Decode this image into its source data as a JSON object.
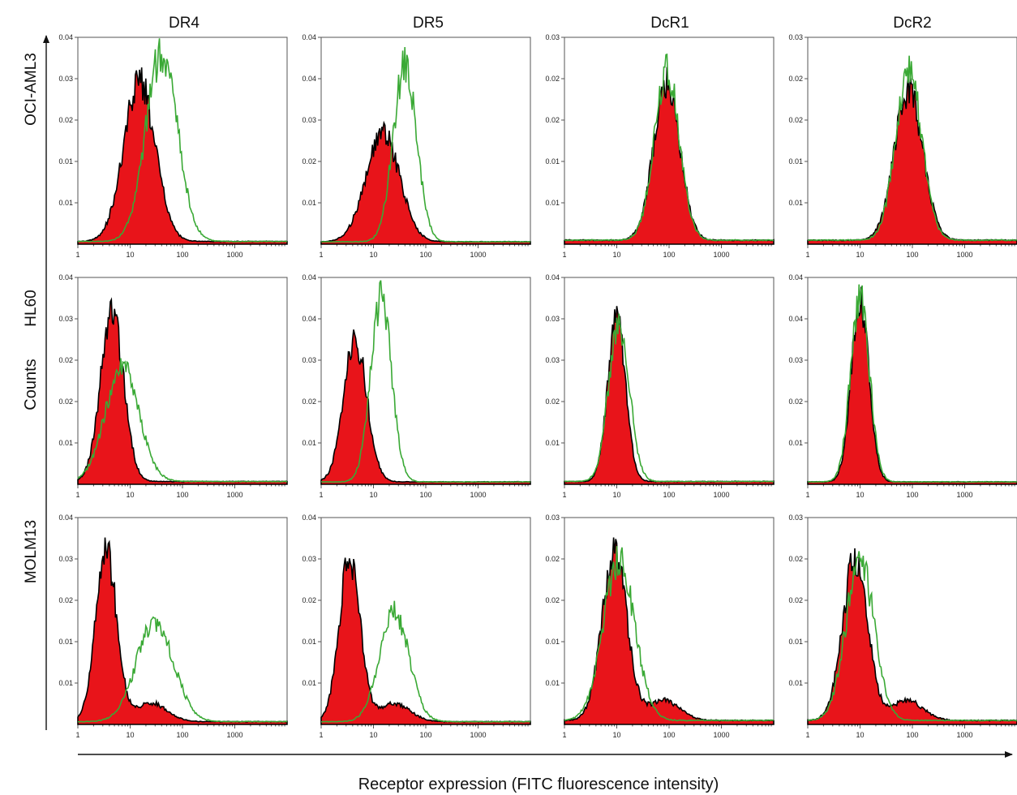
{
  "chart_data": {
    "type": "histogram-grid",
    "xlabel": "Receptor expression (FITC fluorescence intensity)",
    "ylabel": "Counts",
    "x_scale": "log",
    "xlim": [
      1,
      10000
    ],
    "x_tick_labels": [
      "1",
      "10",
      "100",
      "1000"
    ],
    "columns": [
      "DR4",
      "DR5",
      "DcR1",
      "DcR2"
    ],
    "rows": [
      "OCI-AML3",
      "HL60",
      "MOLM13"
    ],
    "colors": {
      "control_fill": "#e8141a",
      "control_edge": "#000000",
      "receptor_line": "#3aa935"
    },
    "panels": [
      {
        "row": 0,
        "col": 0,
        "y_tick_labels": [
          "0.01",
          "0.01",
          "0.02",
          "0.03",
          "0.04"
        ],
        "ylim": [
          0,
          0.045
        ],
        "control": [
          {
            "center": 15,
            "sd": 0.3,
            "peak": 0.035
          }
        ],
        "receptor": [
          {
            "center": 40,
            "sd": 0.3,
            "peak": 0.0412
          }
        ]
      },
      {
        "row": 0,
        "col": 1,
        "y_tick_labels": [
          "0.01",
          "0.02",
          "0.03",
          "0.04",
          "0.04"
        ],
        "ylim": [
          0,
          0.051
        ],
        "control": [
          {
            "center": 15,
            "sd": 0.32,
            "peak": 0.027
          }
        ],
        "receptor": [
          {
            "center": 40,
            "sd": 0.22,
            "peak": 0.044
          }
        ]
      },
      {
        "row": 0,
        "col": 2,
        "y_tick_labels": [
          "0.01",
          "0.01",
          "0.02",
          "0.02",
          "0.03"
        ],
        "ylim": [
          0,
          0.031
        ],
        "control": [
          {
            "center": 90,
            "sd": 0.25,
            "peak": 0.0235
          }
        ],
        "receptor": [
          {
            "center": 90,
            "sd": 0.24,
            "peak": 0.0255
          }
        ]
      },
      {
        "row": 0,
        "col": 3,
        "y_tick_labels": [
          "0.01",
          "0.01",
          "0.02",
          "0.02",
          "0.03"
        ],
        "ylim": [
          0,
          0.031
        ],
        "control": [
          {
            "center": 85,
            "sd": 0.27,
            "peak": 0.0225
          }
        ],
        "receptor": [
          {
            "center": 85,
            "sd": 0.25,
            "peak": 0.0255
          }
        ]
      },
      {
        "row": 1,
        "col": 0,
        "y_tick_labels": [
          "0.01",
          "0.02",
          "0.02",
          "0.03",
          "0.04"
        ],
        "ylim": [
          0,
          0.044
        ],
        "control": [
          {
            "center": 4.5,
            "sd": 0.22,
            "peak": 0.0355
          }
        ],
        "receptor": [
          {
            "center": 7,
            "sd": 0.32,
            "peak": 0.0245
          }
        ]
      },
      {
        "row": 1,
        "col": 1,
        "y_tick_labels": [
          "0.01",
          "0.02",
          "0.03",
          "0.04",
          "0.04"
        ],
        "ylim": [
          0,
          0.051
        ],
        "control": [
          {
            "center": 4.5,
            "sd": 0.22,
            "peak": 0.035
          }
        ],
        "receptor": [
          {
            "center": 14,
            "sd": 0.2,
            "peak": 0.045
          }
        ]
      },
      {
        "row": 1,
        "col": 2,
        "y_tick_labels": [
          "0.01",
          "0.02",
          "0.03",
          "0.03",
          "0.04"
        ],
        "ylim": [
          0,
          0.044
        ],
        "control": [
          {
            "center": 10,
            "sd": 0.17,
            "peak": 0.0355
          }
        ],
        "receptor": [
          {
            "center": 11,
            "sd": 0.2,
            "peak": 0.0335
          }
        ]
      },
      {
        "row": 1,
        "col": 3,
        "y_tick_labels": [
          "0.01",
          "0.02",
          "0.03",
          "0.04",
          "0.04"
        ],
        "ylim": [
          0,
          0.051
        ],
        "control": [
          {
            "center": 10,
            "sd": 0.17,
            "peak": 0.044
          }
        ],
        "receptor": [
          {
            "center": 10,
            "sd": 0.18,
            "peak": 0.0455
          }
        ]
      },
      {
        "row": 2,
        "col": 0,
        "y_tick_labels": [
          "0.01",
          "0.01",
          "0.02",
          "0.03",
          "0.04"
        ],
        "ylim": [
          0,
          0.044
        ],
        "control": [
          {
            "center": 3.5,
            "sd": 0.2,
            "peak": 0.036
          },
          {
            "center": 25,
            "sd": 0.3,
            "peak": 0.004
          }
        ],
        "receptor": [
          {
            "center": 30,
            "sd": 0.35,
            "peak": 0.0215
          }
        ]
      },
      {
        "row": 2,
        "col": 1,
        "y_tick_labels": [
          "0.01",
          "0.01",
          "0.02",
          "0.03",
          "0.04"
        ],
        "ylim": [
          0,
          0.045
        ],
        "control": [
          {
            "center": 3.5,
            "sd": 0.2,
            "peak": 0.0355
          },
          {
            "center": 25,
            "sd": 0.3,
            "peak": 0.004
          }
        ],
        "receptor": [
          {
            "center": 25,
            "sd": 0.28,
            "peak": 0.024
          }
        ]
      },
      {
        "row": 2,
        "col": 2,
        "y_tick_labels": [
          "0.01",
          "0.01",
          "0.02",
          "0.02",
          "0.03"
        ],
        "ylim": [
          0,
          0.031
        ],
        "control": [
          {
            "center": 9,
            "sd": 0.24,
            "peak": 0.025
          },
          {
            "center": 80,
            "sd": 0.3,
            "peak": 0.003
          }
        ],
        "receptor": [
          {
            "center": 11,
            "sd": 0.3,
            "peak": 0.024
          }
        ]
      },
      {
        "row": 2,
        "col": 3,
        "y_tick_labels": [
          "0.01",
          "0.01",
          "0.02",
          "0.02",
          "0.03"
        ],
        "ylim": [
          0,
          0.031
        ],
        "control": [
          {
            "center": 8,
            "sd": 0.24,
            "peak": 0.024
          },
          {
            "center": 80,
            "sd": 0.3,
            "peak": 0.003
          }
        ],
        "receptor": [
          {
            "center": 10,
            "sd": 0.27,
            "peak": 0.024
          }
        ]
      }
    ]
  }
}
